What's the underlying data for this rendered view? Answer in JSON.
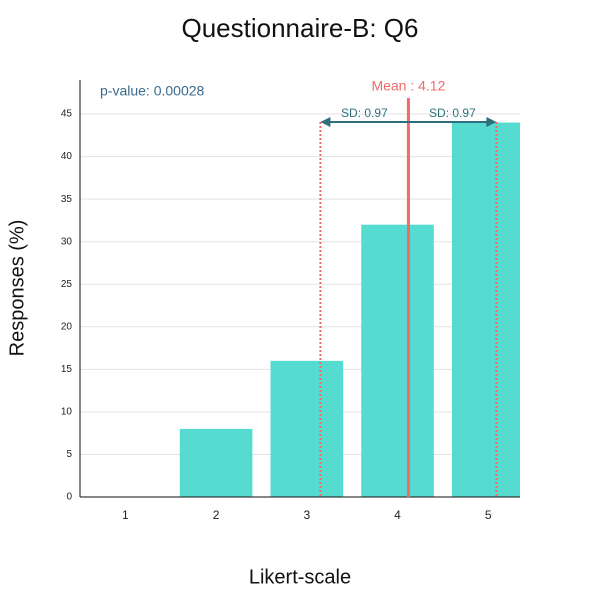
{
  "chart_data": {
    "type": "bar",
    "title": "Questionnaire-B: Q6",
    "x_label": "Likert-scale",
    "y_label": "Responses (%)",
    "x": [
      1,
      2,
      3,
      4,
      5
    ],
    "values": [
      0,
      8,
      16,
      32,
      44
    ],
    "color": "#56dbd1",
    "xlim": [
      0.5,
      5.35
    ],
    "ylim": [
      0,
      49
    ],
    "xticks": [
      1,
      2,
      3,
      4,
      5
    ],
    "yticks": [
      0,
      5,
      10,
      15,
      20,
      25,
      30,
      35,
      40,
      45
    ],
    "grid": true,
    "mean": {
      "value": 4.12,
      "label": "Mean : 4.12",
      "color": "#f06a6a"
    },
    "sd": {
      "value": 0.97,
      "label": "SD: 0.97",
      "color": "#2e6f7e"
    },
    "p_value": "p-value: 0.00028"
  }
}
